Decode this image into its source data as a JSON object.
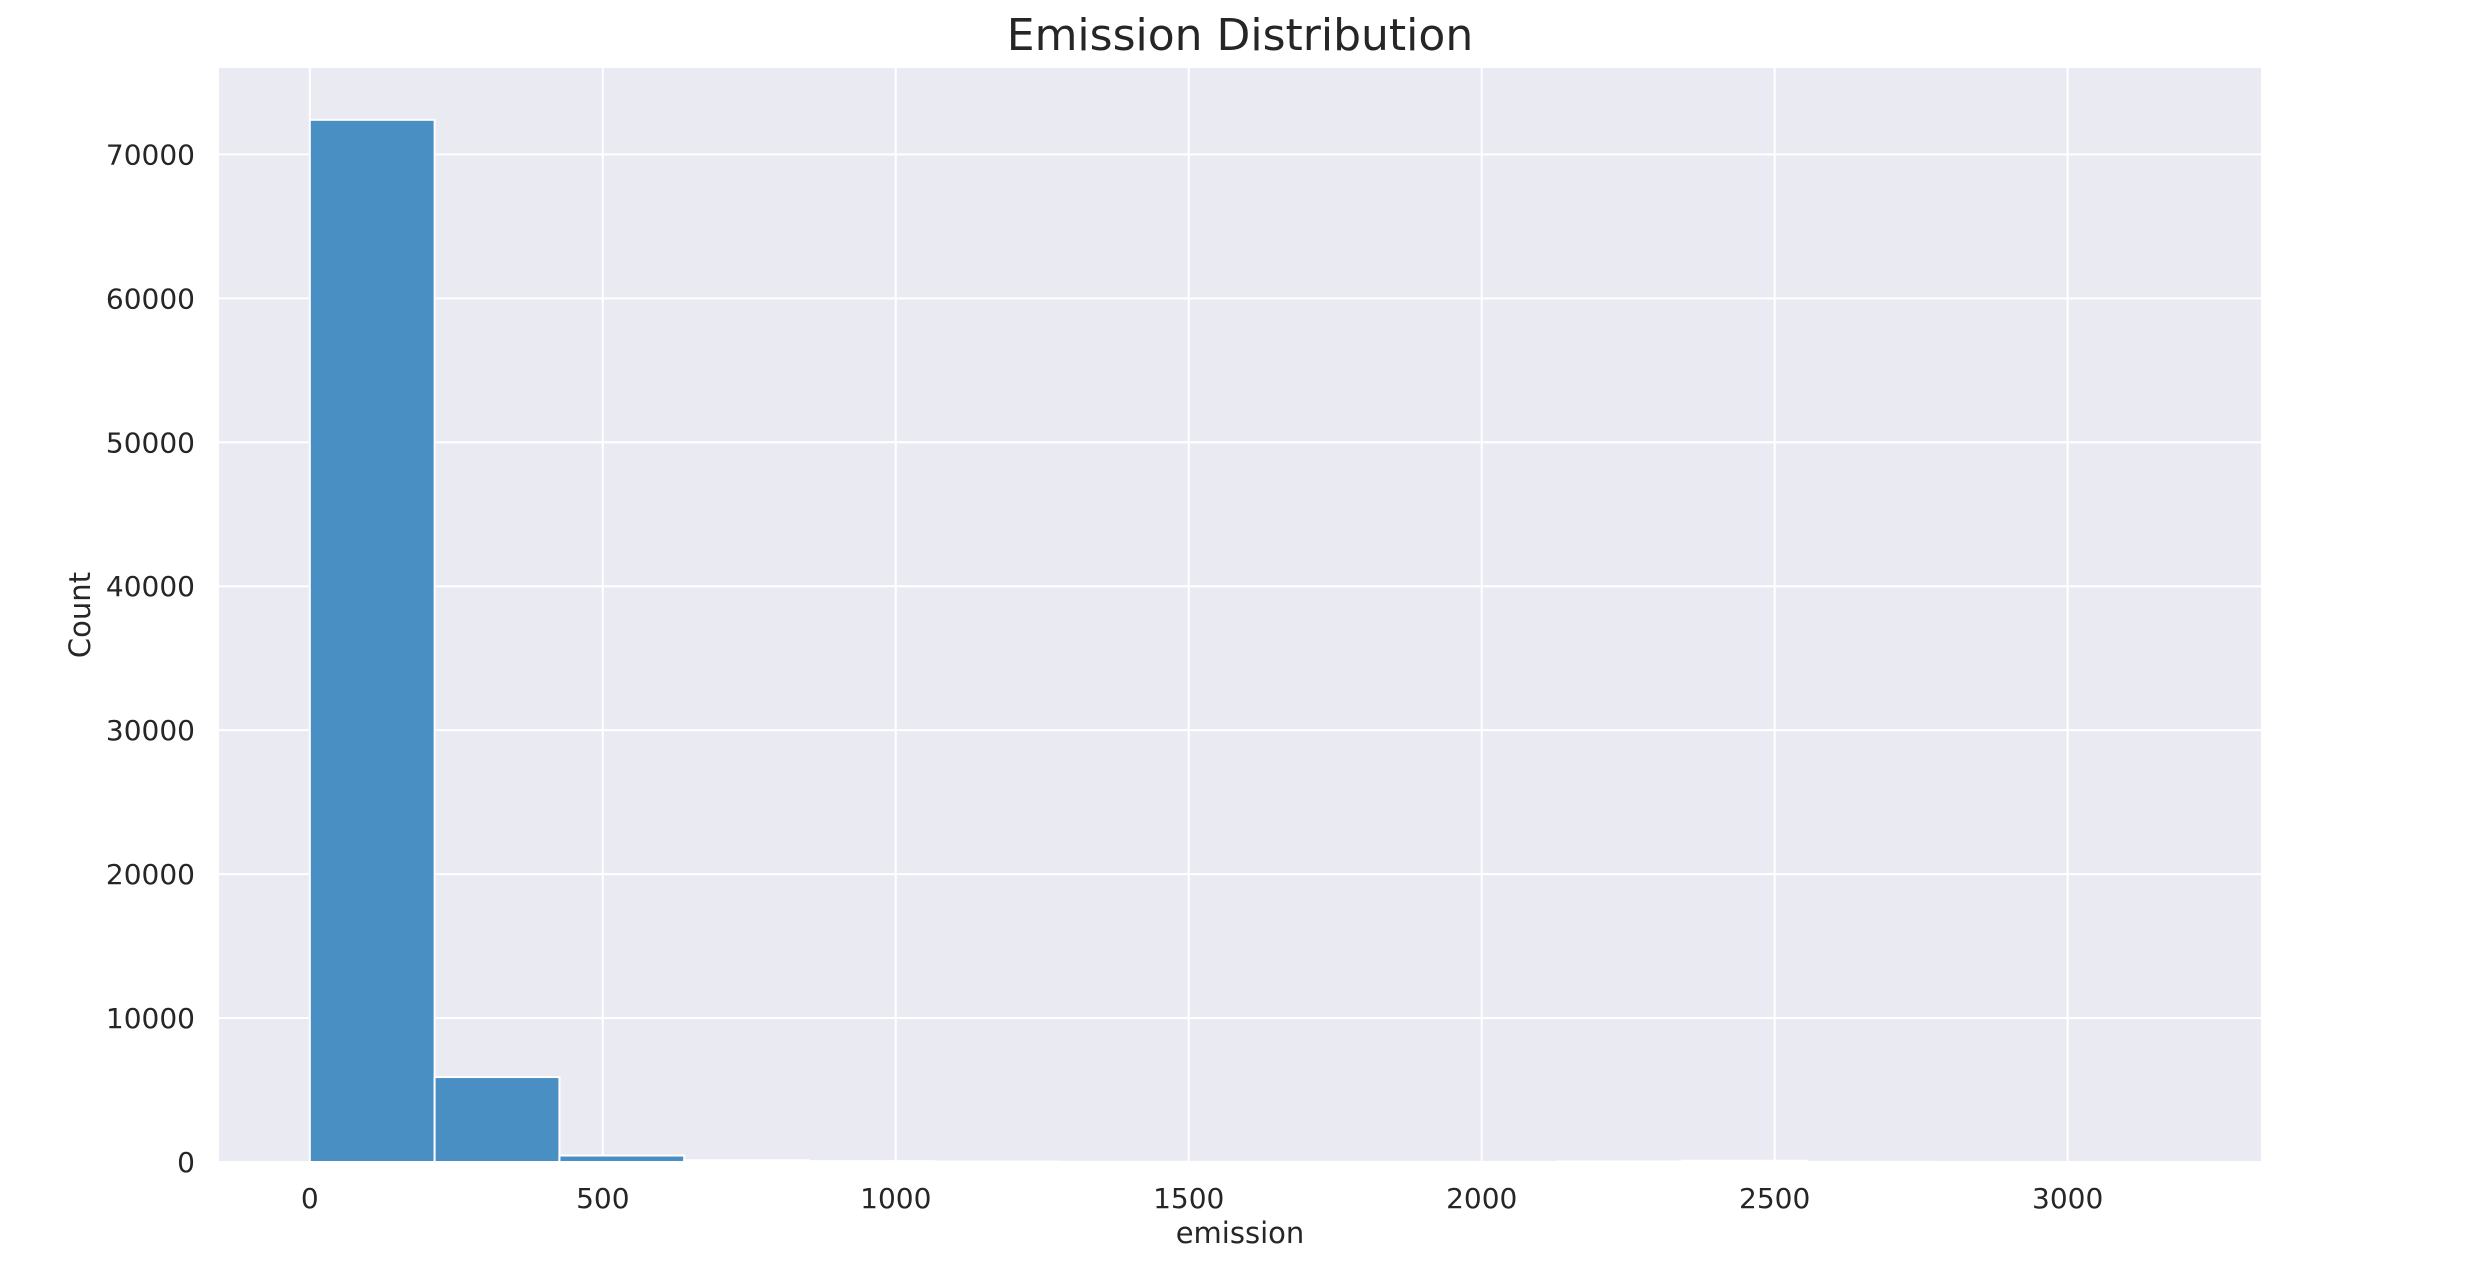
{
  "chart_data": {
    "type": "bar",
    "title": "Emission Distribution",
    "xlabel": "emission",
    "ylabel": "Count",
    "xlim": [
      -155,
      3330
    ],
    "ylim": [
      0,
      76000
    ],
    "xticks": [
      0,
      500,
      1000,
      1500,
      2000,
      2500,
      3000
    ],
    "yticks": [
      0,
      10000,
      20000,
      30000,
      40000,
      50000,
      60000,
      70000
    ],
    "bin_edges": [
      0,
      213,
      426,
      639,
      852,
      1065,
      1278,
      1491,
      1704,
      1917,
      2130,
      2343,
      2556,
      2769,
      2982,
      3195
    ],
    "values": [
      72400,
      5900,
      450,
      120,
      60,
      30,
      15,
      10,
      8,
      6,
      40,
      90,
      5,
      3,
      2
    ],
    "grid": true,
    "legend": "none",
    "colors": {
      "bar_fill": "#4a8fc3",
      "bar_edge": "#ffffff",
      "plot_background": "#eaeaf2",
      "grid": "#ffffff",
      "text": "#262626"
    }
  }
}
